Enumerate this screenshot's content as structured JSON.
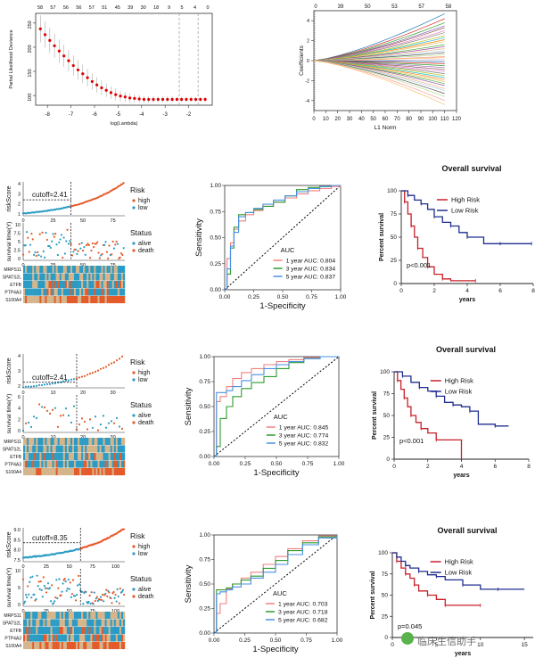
{
  "figure": {
    "lasso_cv": {
      "ylabel": "Partial Likelihood Deviance",
      "xlabel": "log(Lambda)",
      "top_ticks": [
        "58",
        "57",
        "56",
        "56",
        "57",
        "51",
        "45",
        "39",
        "30",
        "18",
        "9",
        "5",
        "4",
        "0"
      ],
      "x_ticks": [
        "-8",
        "-7",
        "-6",
        "-5",
        "-4",
        "-3",
        "-2"
      ],
      "y_ticks": [
        "100",
        "150",
        "200",
        "250"
      ]
    },
    "lasso_path": {
      "ylabel": "Coefficients",
      "xlabel": "L1 Norm",
      "top_ticks": [
        "0",
        "39",
        "50",
        "53",
        "57",
        "58"
      ],
      "x_ticks": [
        "0",
        "10",
        "20",
        "30",
        "40",
        "50",
        "60",
        "70",
        "80",
        "90",
        "100",
        "110",
        "120"
      ],
      "y_ticks": [
        "4",
        "2",
        "0",
        "-2",
        "-4"
      ]
    },
    "risk_labels": {
      "risk_axis": "riskScore",
      "surv_axis": "survival time(Y)",
      "risk_legend_title": "Risk",
      "risk_high": "high",
      "risk_low": "low",
      "status_title": "Status",
      "status_alive": "alive",
      "status_death": "death",
      "genes": [
        "MRPS11",
        "SPATS2L",
        "ETFB",
        "PTP4A3",
        "S100A4"
      ]
    },
    "roc_labels": {
      "xlabel": "1-Specificity",
      "ylabel": "Sensitivity",
      "legend_title": "AUC"
    },
    "km_labels": {
      "title": "Overall survival",
      "ylabel": "Percent survival",
      "xlabel": "years",
      "high": "High Risk",
      "low": "Low Risk"
    },
    "rows": [
      {
        "cutoff": "cutoff=2.41",
        "risk_ticks": [
          "4",
          "3",
          "2",
          "1"
        ],
        "risk_x_ticks": [
          "0",
          "25",
          "50",
          "75"
        ],
        "surv_ticks": [
          "10",
          "7.5",
          "5",
          "2.5",
          "0"
        ],
        "auc": [
          "1 year  AUC: 0.804",
          "3 year  AUC: 0.834",
          "5 year  AUC: 0.837"
        ],
        "pval": "p<0.001",
        "km_x_ticks": [
          "0",
          "2",
          "4",
          "6",
          "8"
        ]
      },
      {
        "cutoff": "cutoff=2.41",
        "risk_ticks": [
          "4",
          "3",
          "2"
        ],
        "risk_x_ticks": [
          "0",
          "10",
          "20",
          "30"
        ],
        "surv_ticks": [
          "6",
          "4",
          "2",
          "0"
        ],
        "auc": [
          "1 year AUC: 0.845",
          "3 year AUC: 0.774",
          "5 year AUC: 0.832"
        ],
        "pval": "p<0.001",
        "km_x_ticks": [
          "0",
          "2",
          "4",
          "6",
          "8"
        ]
      },
      {
        "cutoff": "cutoff=8.35",
        "risk_ticks": [
          "9.0",
          "8.5",
          "8.0",
          "7.5"
        ],
        "risk_x_ticks": [
          "0",
          "25",
          "50",
          "75",
          "100"
        ],
        "surv_ticks": [
          "10",
          "5",
          "0"
        ],
        "auc": [
          "1 year AUC: 0.703",
          "3 year AUC: 0.718",
          "5 year AUC: 0.682"
        ],
        "pval": "p=0.045",
        "km_x_ticks": [
          "0",
          "5",
          "10",
          "15"
        ]
      }
    ],
    "roc_ticks": [
      "0.00",
      "0.25",
      "0.50",
      "0.75",
      "1.00"
    ],
    "km_y_ticks": [
      "100",
      "75",
      "50",
      "25",
      "0"
    ]
  },
  "watermark": "临床生信助手",
  "colors": {
    "high": "#E45A29",
    "low": "#2A9BC4",
    "km_high": "#C8202A",
    "km_low": "#1F2E8F",
    "roc1": "#F08080",
    "roc2": "#2E9A2E",
    "roc3": "#4A90E2",
    "cv": "#E00000",
    "beige": "#D6B48A"
  },
  "chart_data": [
    {
      "type": "scatter",
      "title": "",
      "xlabel": "log(Lambda)",
      "ylabel": "Partial Likelihood Deviance",
      "xlim": [
        -8.5,
        -1.0
      ],
      "ylim": [
        80,
        270
      ],
      "vlines": [
        -2.4,
        -1.6
      ],
      "series": [
        {
          "x": [
            -8.3,
            -8.1,
            -7.9,
            -7.7,
            -7.5,
            -7.3,
            -7.1,
            -6.9,
            -6.7,
            -6.5,
            -6.3,
            -6.1,
            -5.9,
            -5.7,
            -5.5,
            -5.3,
            -5.1,
            -4.9,
            -4.7,
            -4.5,
            -4.3,
            -4.1,
            -3.9,
            -3.7,
            -3.5,
            -3.3,
            -3.1,
            -2.9,
            -2.7,
            -2.5,
            -2.3,
            -2.1,
            -1.9,
            -1.7,
            -1.5,
            -1.3
          ],
          "y": [
            238,
            226,
            214,
            203,
            192,
            182,
            172,
            162,
            153,
            145,
            137,
            129,
            122,
            116,
            111,
            106,
            102,
            99,
            97,
            95,
            94,
            93,
            92,
            92,
            92,
            92,
            92,
            92,
            92,
            92,
            92,
            92,
            92,
            92,
            92,
            92
          ],
          "err": [
            28,
            27,
            26,
            25,
            24,
            23,
            22,
            21,
            20,
            19,
            18,
            17,
            16,
            15,
            14,
            13,
            12,
            11,
            10,
            9,
            8,
            8,
            7,
            7,
            6,
            6,
            6,
            6,
            6,
            5,
            5,
            5,
            5,
            5,
            5,
            5
          ]
        }
      ]
    },
    {
      "type": "line",
      "title": "",
      "xlabel": "L1 Norm",
      "ylabel": "Coefficients",
      "xlim": [
        0,
        120
      ],
      "ylim": [
        -5,
        5
      ],
      "x": [
        0,
        110
      ],
      "endpoint_values": [
        4.7,
        4.2,
        3.8,
        3.5,
        3.3,
        3.0,
        2.8,
        2.5,
        2.3,
        2.1,
        1.9,
        1.6,
        1.4,
        1.2,
        1.0,
        0.8,
        0.6,
        0.4,
        0.3,
        0.1,
        -0.1,
        -0.3,
        -0.5,
        -0.7,
        -0.9,
        -1.1,
        -1.3,
        -1.5,
        -1.7,
        -1.9,
        -2.1,
        -2.3,
        -2.5,
        -2.8,
        -3.0,
        -3.3,
        -3.6,
        -4.0,
        -4.4
      ]
    },
    {
      "type": "line",
      "title": "",
      "xlabel": "1-Specificity",
      "ylabel": "Sensitivity",
      "series": [
        {
          "name": "1 year  AUC: 0.804",
          "x": [
            0,
            0.02,
            0.05,
            0.08,
            0.12,
            0.18,
            0.25,
            0.33,
            0.42,
            0.52,
            0.62,
            0.72,
            0.82,
            0.92,
            1
          ],
          "y": [
            0,
            0.3,
            0.45,
            0.58,
            0.66,
            0.72,
            0.76,
            0.8,
            0.84,
            0.88,
            0.92,
            0.95,
            0.97,
            0.99,
            1
          ]
        },
        {
          "name": "3 year  AUC: 0.834",
          "x": [
            0,
            0.02,
            0.05,
            0.08,
            0.12,
            0.18,
            0.25,
            0.33,
            0.42,
            0.52,
            0.62,
            0.72,
            0.82,
            0.92,
            1
          ],
          "y": [
            0,
            0.15,
            0.4,
            0.6,
            0.72,
            0.74,
            0.77,
            0.8,
            0.84,
            0.9,
            0.96,
            0.98,
            0.99,
            1,
            1
          ]
        },
        {
          "name": "5 year  AUC: 0.837",
          "x": [
            0,
            0.02,
            0.05,
            0.08,
            0.12,
            0.18,
            0.25,
            0.33,
            0.42,
            0.52,
            0.62,
            0.72,
            0.82,
            0.92,
            1
          ],
          "y": [
            0,
            0.2,
            0.42,
            0.55,
            0.7,
            0.74,
            0.78,
            0.82,
            0.86,
            0.9,
            0.94,
            0.97,
            0.99,
            1,
            1
          ]
        }
      ]
    },
    {
      "type": "line",
      "title": "Overall survival",
      "xlabel": "years",
      "ylabel": "Percent survival",
      "series": [
        {
          "name": "High Risk",
          "x": [
            0,
            0.2,
            0.4,
            0.6,
            0.8,
            1.0,
            1.3,
            1.6,
            2.0,
            2.5,
            3.0,
            4.5
          ],
          "y": [
            100,
            88,
            75,
            62,
            50,
            38,
            28,
            18,
            10,
            5,
            3,
            3
          ]
        },
        {
          "name": "Low Risk",
          "x": [
            0,
            0.4,
            0.8,
            1.2,
            1.6,
            2.0,
            2.5,
            3.0,
            3.5,
            4.0,
            5.0,
            6.0,
            7.0,
            7.9
          ],
          "y": [
            100,
            95,
            90,
            86,
            80,
            72,
            66,
            62,
            55,
            50,
            43,
            43,
            43,
            43
          ]
        }
      ]
    },
    {
      "type": "line",
      "title": "",
      "xlabel": "1-Specificity",
      "ylabel": "Sensitivity",
      "series": [
        {
          "name": "1 year AUC: 0.845",
          "x": [
            0,
            0.02,
            0.05,
            0.1,
            0.15,
            0.22,
            0.3,
            0.4,
            0.5,
            0.6,
            0.72,
            0.85,
            1
          ],
          "y": [
            0,
            0.55,
            0.6,
            0.7,
            0.78,
            0.84,
            0.88,
            0.92,
            0.95,
            0.97,
            0.99,
            1,
            1
          ]
        },
        {
          "name": "3 year AUC: 0.774",
          "x": [
            0,
            0.02,
            0.05,
            0.1,
            0.15,
            0.22,
            0.3,
            0.4,
            0.5,
            0.6,
            0.72,
            0.85,
            1
          ],
          "y": [
            0,
            0.1,
            0.38,
            0.5,
            0.6,
            0.68,
            0.74,
            0.8,
            0.88,
            0.94,
            0.98,
            1,
            1
          ]
        },
        {
          "name": "5 year AUC: 0.832",
          "x": [
            0,
            0.02,
            0.05,
            0.1,
            0.15,
            0.22,
            0.3,
            0.4,
            0.5,
            0.6,
            0.72,
            0.85,
            1
          ],
          "y": [
            0,
            0.64,
            0.64,
            0.66,
            0.7,
            0.76,
            0.82,
            0.88,
            0.92,
            0.95,
            0.98,
            1,
            1
          ]
        }
      ]
    },
    {
      "type": "line",
      "title": "Overall survival",
      "xlabel": "years",
      "ylabel": "Percent survival",
      "series": [
        {
          "name": "High Risk",
          "x": [
            0,
            0.2,
            0.4,
            0.6,
            0.8,
            1.0,
            1.3,
            1.6,
            2.0,
            2.5,
            3.0,
            4.0
          ],
          "y": [
            100,
            90,
            80,
            70,
            60,
            50,
            42,
            35,
            30,
            22,
            22,
            0
          ]
        },
        {
          "name": "Low Risk",
          "x": [
            0,
            0.5,
            1.0,
            1.5,
            2.0,
            2.5,
            3.0,
            3.5,
            4.0,
            4.5,
            5.0,
            6.0,
            6.8
          ],
          "y": [
            100,
            95,
            88,
            82,
            78,
            72,
            65,
            62,
            60,
            55,
            40,
            38,
            38
          ]
        }
      ]
    },
    {
      "type": "line",
      "title": "",
      "xlabel": "1-Specificity",
      "ylabel": "Sensitivity",
      "series": [
        {
          "name": "1 year AUC: 0.703",
          "x": [
            0,
            0.02,
            0.05,
            0.1,
            0.15,
            0.22,
            0.3,
            0.4,
            0.5,
            0.6,
            0.72,
            0.85,
            1
          ],
          "y": [
            0,
            0.2,
            0.3,
            0.45,
            0.5,
            0.56,
            0.62,
            0.7,
            0.78,
            0.86,
            0.94,
            0.99,
            1
          ]
        },
        {
          "name": "3 year AUC: 0.718",
          "x": [
            0,
            0.02,
            0.05,
            0.1,
            0.15,
            0.22,
            0.3,
            0.4,
            0.5,
            0.6,
            0.72,
            0.85,
            1
          ],
          "y": [
            0,
            0.44,
            0.44,
            0.46,
            0.5,
            0.54,
            0.58,
            0.66,
            0.74,
            0.84,
            0.92,
            0.98,
            1
          ]
        },
        {
          "name": "5 year AUC: 0.682",
          "x": [
            0,
            0.02,
            0.05,
            0.1,
            0.15,
            0.22,
            0.3,
            0.4,
            0.5,
            0.6,
            0.72,
            0.85,
            1
          ],
          "y": [
            0,
            0.4,
            0.42,
            0.44,
            0.47,
            0.5,
            0.56,
            0.62,
            0.7,
            0.8,
            0.9,
            0.97,
            1
          ]
        }
      ]
    },
    {
      "type": "line",
      "title": "Overall survival",
      "xlabel": "years",
      "ylabel": "Percent survival",
      "series": [
        {
          "name": "High Risk",
          "x": [
            0,
            0.5,
            1,
            1.5,
            2,
            2.5,
            3,
            4,
            5,
            6,
            8,
            10
          ],
          "y": [
            100,
            90,
            82,
            75,
            70,
            62,
            55,
            50,
            45,
            38,
            38,
            38
          ]
        },
        {
          "name": "Low Risk",
          "x": [
            0,
            0.5,
            1,
            1.5,
            2,
            3,
            4,
            5,
            6,
            8,
            10,
            12,
            15
          ],
          "y": [
            100,
            95,
            90,
            85,
            82,
            78,
            74,
            72,
            68,
            62,
            57,
            57,
            57
          ]
        }
      ]
    }
  ]
}
